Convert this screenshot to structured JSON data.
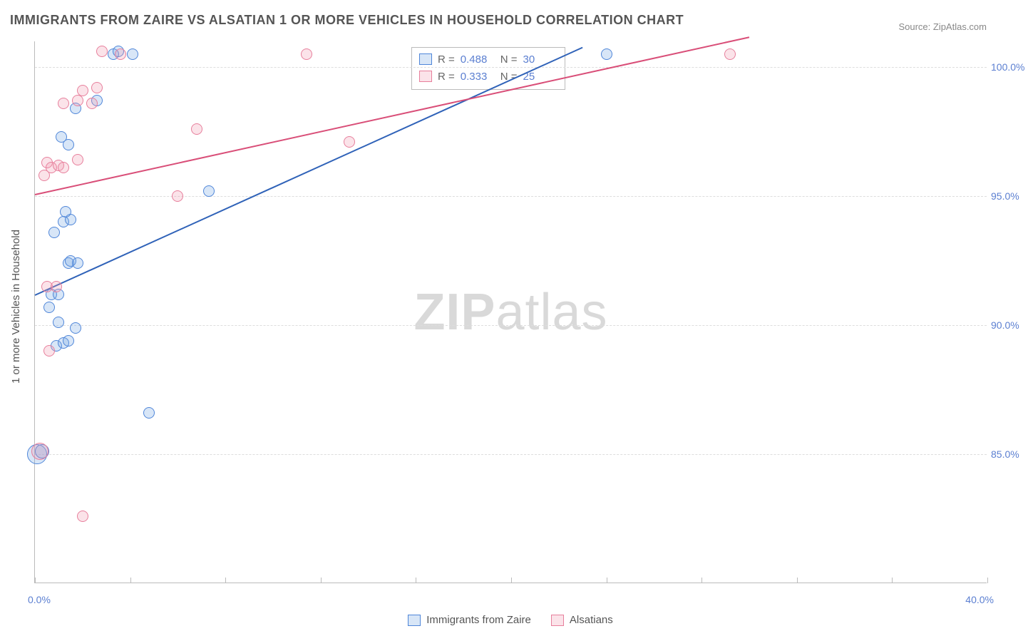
{
  "title": "IMMIGRANTS FROM ZAIRE VS ALSATIAN 1 OR MORE VEHICLES IN HOUSEHOLD CORRELATION CHART",
  "source_label": "Source: ",
  "source_value": "ZipAtlas.com",
  "watermark_bold": "ZIP",
  "watermark_rest": "atlas",
  "y_axis_title": "1 or more Vehicles in Household",
  "chart": {
    "type": "scatter",
    "background_color": "#ffffff",
    "grid_color": "#dddddd",
    "axis_color": "#bbbbbb",
    "xlim": [
      0,
      40
    ],
    "ylim": [
      80,
      101
    ],
    "x_ticks_minor": [
      0,
      4,
      8,
      12,
      16,
      20,
      24,
      28,
      32,
      36,
      40
    ],
    "x_labels": {
      "min": "0.0%",
      "max": "40.0%"
    },
    "y_ticks": [
      {
        "v": 100,
        "label": "100.0%"
      },
      {
        "v": 95,
        "label": "95.0%"
      },
      {
        "v": 90,
        "label": "90.0%"
      },
      {
        "v": 85,
        "label": "85.0%"
      }
    ],
    "series": [
      {
        "id": "zaire",
        "label": "Immigrants from Zaire",
        "stroke": "#4f86d9",
        "fill": "rgba(116,164,227,0.28)",
        "marker_radius": 8,
        "r_value": "0.488",
        "n_value": "30",
        "trend": {
          "x1": 0,
          "y1": 91.2,
          "x2": 23,
          "y2": 100.8,
          "color": "#2f62b8",
          "width": 2
        },
        "points": [
          {
            "x": 0.1,
            "y": 85.0,
            "r": 14
          },
          {
            "x": 0.3,
            "y": 85.1,
            "r": 10
          },
          {
            "x": 0.6,
            "y": 90.7,
            "r": 8
          },
          {
            "x": 0.7,
            "y": 91.2,
            "r": 8
          },
          {
            "x": 1.0,
            "y": 91.2,
            "r": 8
          },
          {
            "x": 0.9,
            "y": 89.2,
            "r": 8
          },
          {
            "x": 1.2,
            "y": 89.3,
            "r": 8
          },
          {
            "x": 1.4,
            "y": 89.4,
            "r": 8
          },
          {
            "x": 1.0,
            "y": 90.1,
            "r": 8
          },
          {
            "x": 1.7,
            "y": 89.9,
            "r": 8
          },
          {
            "x": 1.4,
            "y": 92.4,
            "r": 8
          },
          {
            "x": 1.5,
            "y": 92.5,
            "r": 8
          },
          {
            "x": 1.8,
            "y": 92.4,
            "r": 8
          },
          {
            "x": 0.8,
            "y": 93.6,
            "r": 8
          },
          {
            "x": 1.2,
            "y": 94.0,
            "r": 8
          },
          {
            "x": 1.5,
            "y": 94.1,
            "r": 8
          },
          {
            "x": 1.3,
            "y": 94.4,
            "r": 8
          },
          {
            "x": 1.4,
            "y": 97.0,
            "r": 8
          },
          {
            "x": 1.1,
            "y": 97.3,
            "r": 8
          },
          {
            "x": 1.7,
            "y": 98.4,
            "r": 8
          },
          {
            "x": 2.6,
            "y": 98.7,
            "r": 8
          },
          {
            "x": 3.3,
            "y": 100.5,
            "r": 8
          },
          {
            "x": 3.5,
            "y": 100.6,
            "r": 8
          },
          {
            "x": 4.1,
            "y": 100.5,
            "r": 8
          },
          {
            "x": 4.8,
            "y": 86.6,
            "r": 8
          },
          {
            "x": 7.3,
            "y": 95.2,
            "r": 8
          },
          {
            "x": 24.0,
            "y": 100.5,
            "r": 8
          }
        ]
      },
      {
        "id": "alsatians",
        "label": "Alsatians",
        "stroke": "#e77f9c",
        "fill": "rgba(239,154,177,0.28)",
        "marker_radius": 8,
        "r_value": "0.333",
        "n_value": "25",
        "trend": {
          "x1": 0,
          "y1": 95.1,
          "x2": 30,
          "y2": 101.2,
          "color": "#d94e78",
          "width": 2
        },
        "points": [
          {
            "x": 0.2,
            "y": 85.1,
            "r": 12
          },
          {
            "x": 0.6,
            "y": 89.0,
            "r": 8
          },
          {
            "x": 0.5,
            "y": 91.5,
            "r": 8
          },
          {
            "x": 0.9,
            "y": 91.5,
            "r": 8
          },
          {
            "x": 0.4,
            "y": 95.8,
            "r": 8
          },
          {
            "x": 0.5,
            "y": 96.3,
            "r": 8
          },
          {
            "x": 0.7,
            "y": 96.1,
            "r": 8
          },
          {
            "x": 1.0,
            "y": 96.2,
            "r": 8
          },
          {
            "x": 1.2,
            "y": 96.1,
            "r": 8
          },
          {
            "x": 1.8,
            "y": 96.4,
            "r": 8
          },
          {
            "x": 1.2,
            "y": 98.6,
            "r": 8
          },
          {
            "x": 1.8,
            "y": 98.7,
            "r": 8
          },
          {
            "x": 2.0,
            "y": 99.1,
            "r": 8
          },
          {
            "x": 2.4,
            "y": 98.6,
            "r": 8
          },
          {
            "x": 2.6,
            "y": 99.2,
            "r": 8
          },
          {
            "x": 2.8,
            "y": 100.6,
            "r": 8
          },
          {
            "x": 3.6,
            "y": 100.5,
            "r": 8
          },
          {
            "x": 2.0,
            "y": 82.6,
            "r": 8
          },
          {
            "x": 6.0,
            "y": 95.0,
            "r": 8
          },
          {
            "x": 6.8,
            "y": 97.6,
            "r": 8
          },
          {
            "x": 11.4,
            "y": 100.5,
            "r": 8
          },
          {
            "x": 13.2,
            "y": 97.1,
            "r": 8
          },
          {
            "x": 29.2,
            "y": 100.5,
            "r": 8
          }
        ]
      }
    ],
    "stats_labels": {
      "r": "R = ",
      "n": "N = "
    }
  },
  "label_color": "#5b7fd1",
  "text_color": "#555555"
}
